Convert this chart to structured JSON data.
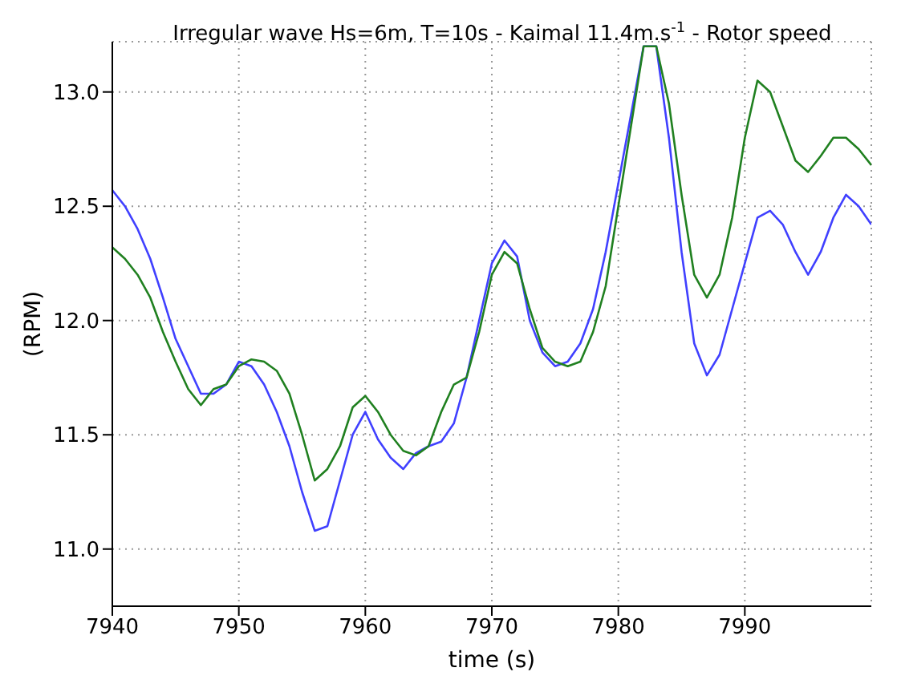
{
  "chart_data": {
    "type": "line",
    "title": "Irregular wave Hs=6m, T=10s - Kaimal 11.4m.s$^{-1}$ - Rotor speed",
    "xlabel": "time (s)",
    "ylabel": "(RPM)",
    "x": [
      7940,
      7941,
      7942,
      7943,
      7944,
      7945,
      7946,
      7947,
      7948,
      7949,
      7950,
      7951,
      7952,
      7953,
      7954,
      7955,
      7956,
      7957,
      7958,
      7959,
      7960,
      7961,
      7962,
      7963,
      7964,
      7965,
      7966,
      7967,
      7968,
      7969,
      7970,
      7971,
      7972,
      7973,
      7974,
      7975,
      7976,
      7977,
      7978,
      7979,
      7980,
      7981,
      7982,
      7983,
      7984,
      7985,
      7986,
      7987,
      7988,
      7989,
      7990,
      7991,
      7992,
      7993,
      7994,
      7995,
      7996,
      7997,
      7998,
      7999,
      8000
    ],
    "series": [
      {
        "color": "#4040ff",
        "values": [
          12.57,
          12.5,
          12.4,
          12.27,
          12.1,
          11.92,
          11.8,
          11.68,
          11.68,
          11.72,
          11.82,
          11.8,
          11.72,
          11.6,
          11.45,
          11.25,
          11.08,
          11.1,
          11.3,
          11.5,
          11.6,
          11.48,
          11.4,
          11.35,
          11.42,
          11.45,
          11.47,
          11.55,
          11.75,
          12.0,
          12.25,
          12.35,
          12.28,
          12.0,
          11.86,
          11.8,
          11.82,
          11.9,
          12.05,
          12.3,
          12.6,
          12.9,
          13.2,
          13.2,
          12.8,
          12.3,
          11.9,
          11.76,
          11.85,
          12.05,
          12.25,
          12.45,
          12.48,
          12.42,
          12.3,
          12.2,
          12.3,
          12.45,
          12.55,
          12.5,
          12.42
        ]
      },
      {
        "color": "#208020",
        "values": [
          12.32,
          12.27,
          12.2,
          12.1,
          11.95,
          11.82,
          11.7,
          11.63,
          11.7,
          11.72,
          11.8,
          11.83,
          11.82,
          11.78,
          11.68,
          11.5,
          11.3,
          11.35,
          11.45,
          11.62,
          11.67,
          11.6,
          11.5,
          11.43,
          11.41,
          11.45,
          11.6,
          11.72,
          11.75,
          11.95,
          12.2,
          12.3,
          12.25,
          12.05,
          11.88,
          11.82,
          11.8,
          11.82,
          11.95,
          12.15,
          12.5,
          12.85,
          13.2,
          13.2,
          12.95,
          12.55,
          12.2,
          12.1,
          12.2,
          12.45,
          12.8,
          13.05,
          13.0,
          12.85,
          12.7,
          12.65,
          12.72,
          12.8,
          12.8,
          12.75,
          12.68
        ]
      }
    ],
    "xlim": [
      7940,
      8000
    ],
    "xticks": [
      7940,
      7950,
      7960,
      7970,
      7980,
      7990
    ],
    "ylim": [
      10.75,
      13.22
    ],
    "yticks": [
      {
        "value": 11,
        "label": "11.0"
      },
      11.5,
      {
        "value": 12,
        "label": "12.0"
      },
      12.5,
      {
        "value": 13,
        "label": "13.0"
      }
    ],
    "grid": true,
    "marker": "none",
    "line_style": "solid",
    "legend": false
  }
}
